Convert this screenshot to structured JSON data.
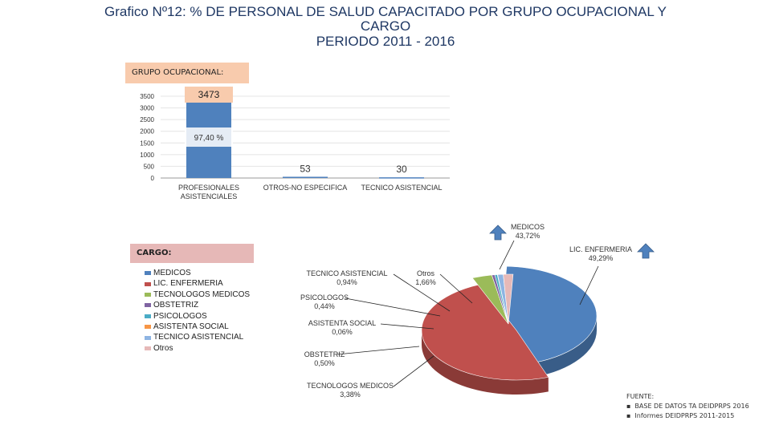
{
  "title": {
    "line1": "Grafico Nº12:  % DE PERSONAL DE SALUD CAPACITADO POR GRUPO OCUPACIONAL Y",
    "line2": "CARGO",
    "line3": "PERIODO 2011 - 2016"
  },
  "grupo_header": "GRUPO OCUPACIONAL:",
  "cargo_header": "CARGO:",
  "chart_data": [
    {
      "type": "bar",
      "categories": [
        "PROFESIONALES ASISTENCIALES",
        "OTROS-NO ESPECIFICA",
        "TECNICO ASISTENCIAL"
      ],
      "category_lines": [
        [
          "PROFESIONALES",
          "ASISTENCIALES"
        ],
        [
          "OTROS-NO ESPECIFICA"
        ],
        [
          "TECNICO ASISTENCIAL"
        ]
      ],
      "values": [
        3473,
        53,
        30
      ],
      "value_labels": [
        "3473",
        "53",
        "30"
      ],
      "percent_label": "97,40 %",
      "ylim": [
        0,
        3500
      ],
      "yticks": [
        0,
        500,
        1000,
        1500,
        2000,
        2500,
        3000,
        3500
      ],
      "grid": true,
      "color": "#4f81bd"
    },
    {
      "type": "pie",
      "labels": [
        "MEDICOS",
        "LIC. ENFERMERIA",
        "TECNOLOGOS MEDICOS",
        "OBSTETRIZ",
        "PSICOLOGOS",
        "ASISTENTA SOCIAL",
        "TECNICO ASISTENCIAL",
        "Otros"
      ],
      "values": [
        43.72,
        49.29,
        3.38,
        0.5,
        0.44,
        0.06,
        0.94,
        1.66
      ],
      "value_labels": [
        "43,72%",
        "49,29%",
        "3,38%",
        "0,50%",
        "0,44%",
        "0,06%",
        "0,94%",
        "1,66%"
      ],
      "colors": [
        "#4f81bd",
        "#c0504d",
        "#9bbb59",
        "#8064a2",
        "#4bacc6",
        "#f79646",
        "#8eb4e3",
        "#e6b9b8"
      ],
      "legend_position": "left"
    }
  ],
  "source": {
    "heading": "FUENTE:",
    "items": [
      "BASE DE DATOS TA DEIDPRPS 2016",
      "Informes DEIDPRPS 2011-2015"
    ]
  }
}
